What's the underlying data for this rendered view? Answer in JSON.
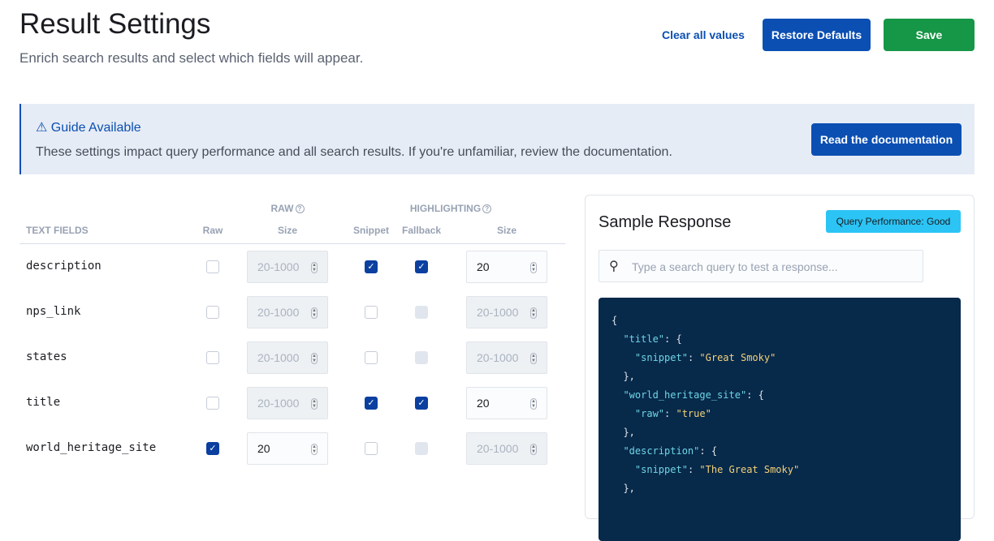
{
  "header": {
    "title": "Result Settings",
    "subtitle": "Enrich search results and select which fields will appear.",
    "clear_label": "Clear all values",
    "restore_label": "Restore Defaults",
    "save_label": "Save"
  },
  "colors": {
    "primary": "#0b4fb3",
    "save": "#169647",
    "badge": "#2bc4f5",
    "code_bg": "#07294a"
  },
  "callout": {
    "icon": "warning-icon",
    "title": "Guide Available",
    "text": "These settings impact query performance and all search results. If you're unfamiliar, review the documentation.",
    "button": "Read the documentation"
  },
  "table": {
    "group_raw": "RAW",
    "group_highlighting": "HIGHLIGHTING",
    "columns": {
      "fields": "TEXT FIELDS",
      "raw": "Raw",
      "raw_size": "Size",
      "snippet": "Snippet",
      "fallback": "Fallback",
      "hl_size": "Size"
    },
    "size_placeholder": "20-1000",
    "rows": [
      {
        "name": "description",
        "raw": false,
        "raw_size": "",
        "snippet": true,
        "fallback": true,
        "hl_size": "20"
      },
      {
        "name": "nps_link",
        "raw": false,
        "raw_size": "",
        "snippet": false,
        "fallback": false,
        "hl_size": ""
      },
      {
        "name": "states",
        "raw": false,
        "raw_size": "",
        "snippet": false,
        "fallback": false,
        "hl_size": ""
      },
      {
        "name": "title",
        "raw": false,
        "raw_size": "",
        "snippet": true,
        "fallback": true,
        "hl_size": "20"
      },
      {
        "name": "world_heritage_site",
        "raw": true,
        "raw_size": "20",
        "snippet": false,
        "fallback": false,
        "hl_size": ""
      }
    ]
  },
  "sample": {
    "title": "Sample Response",
    "badge": "Query Performance: Good",
    "search_placeholder": "Type a search query to test a response...",
    "code_lines": [
      [
        {
          "t": "{",
          "c": ""
        }
      ],
      [
        {
          "t": "  ",
          "c": ""
        },
        {
          "t": "\"title\"",
          "c": "k"
        },
        {
          "t": ": {",
          "c": ""
        }
      ],
      [
        {
          "t": "    ",
          "c": ""
        },
        {
          "t": "\"snippet\"",
          "c": "k"
        },
        {
          "t": ": ",
          "c": ""
        },
        {
          "t": "\"Great Smoky\"",
          "c": "s"
        }
      ],
      [
        {
          "t": "  },",
          "c": ""
        }
      ],
      [
        {
          "t": "  ",
          "c": ""
        },
        {
          "t": "\"world_heritage_site\"",
          "c": "k"
        },
        {
          "t": ": {",
          "c": ""
        }
      ],
      [
        {
          "t": "    ",
          "c": ""
        },
        {
          "t": "\"raw\"",
          "c": "k"
        },
        {
          "t": ": ",
          "c": ""
        },
        {
          "t": "\"true\"",
          "c": "s"
        }
      ],
      [
        {
          "t": "  },",
          "c": ""
        }
      ],
      [
        {
          "t": "  ",
          "c": ""
        },
        {
          "t": "\"description\"",
          "c": "k"
        },
        {
          "t": ": {",
          "c": ""
        }
      ],
      [
        {
          "t": "    ",
          "c": ""
        },
        {
          "t": "\"snippet\"",
          "c": "k"
        },
        {
          "t": ": ",
          "c": ""
        },
        {
          "t": "\"The Great Smoky\"",
          "c": "s"
        }
      ],
      [
        {
          "t": "  },",
          "c": ""
        }
      ]
    ]
  }
}
